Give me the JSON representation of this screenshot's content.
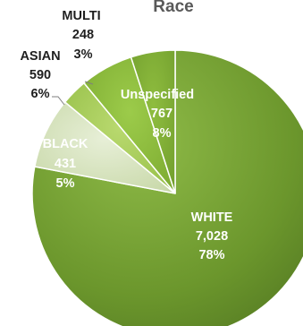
{
  "chart_data": {
    "type": "pie",
    "title": "Race",
    "slices": [
      {
        "name": "WHITE",
        "value": "7,028",
        "percent": "78%",
        "pct_value": 78
      },
      {
        "name": "Unspecified",
        "value": "767",
        "percent": "8%",
        "pct_value": 8
      },
      {
        "name": "MULTI",
        "value": "248",
        "percent": "3%",
        "pct_value": 3
      },
      {
        "name": "ASIAN",
        "value": "590",
        "percent": "6%",
        "pct_value": 6
      },
      {
        "name": "BLACK",
        "value": "431",
        "percent": "5%",
        "pct_value": 5
      }
    ],
    "colors": {
      "WHITE": "#6f9a2e",
      "Unspecified": "#d6e3bf",
      "MULTI": "#a6cc55",
      "ASIAN": "#8cbe3a",
      "BLACK": "#7fac35"
    }
  }
}
